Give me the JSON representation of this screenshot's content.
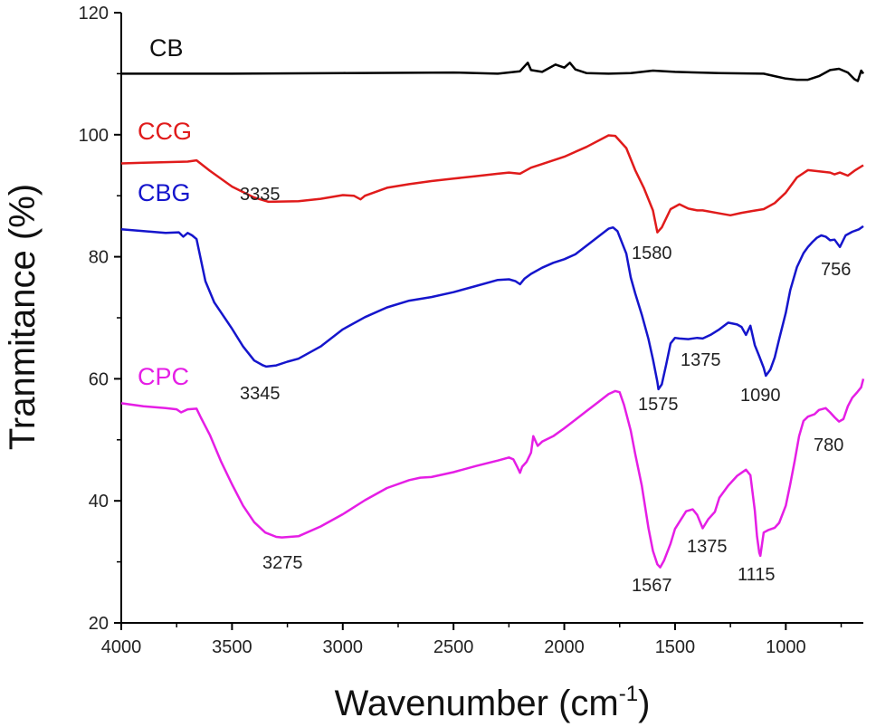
{
  "chart_data": {
    "type": "line",
    "title": "",
    "xlabel": "Wavenumber (cm",
    "xlabel_sup": "-1",
    "xlabel_close": ")",
    "ylabel": "Tranmitance (%)",
    "xlim": [
      4000,
      650
    ],
    "ylim": [
      20,
      120
    ],
    "x_reversed": true,
    "xticks": [
      4000,
      3500,
      3000,
      2500,
      2000,
      1500,
      1000
    ],
    "xtick_labels": [
      "4000",
      "3500",
      "3000",
      "2500",
      "2000",
      "1500",
      "1000"
    ],
    "yticks": [
      20,
      40,
      60,
      80,
      100,
      120
    ],
    "ytick_labels": [
      "20",
      "40",
      "60",
      "80",
      "100",
      "120"
    ],
    "grid": false,
    "series": [
      {
        "name": "CB",
        "color": "#000000",
        "x": [
          4000,
          3500,
          3000,
          2500,
          2300,
          2200,
          2165,
          2150,
          2100,
          2040,
          2000,
          1975,
          1950,
          1900,
          1800,
          1700,
          1600,
          1500,
          1300,
          1100,
          1050,
          1000,
          950,
          900,
          850,
          800,
          760,
          720,
          690,
          675,
          660,
          650
        ],
        "y": [
          110,
          110,
          110.1,
          110.2,
          110,
          110.4,
          111.8,
          110.6,
          110.3,
          111.5,
          111,
          111.8,
          110.7,
          110.1,
          110,
          110.1,
          110.5,
          110.3,
          110.1,
          110,
          109.6,
          109.2,
          109,
          109,
          109.6,
          110.6,
          110.8,
          110.2,
          109.1,
          108.8,
          110.5,
          110
        ]
      },
      {
        "name": "CCG",
        "color": "#e01b1b",
        "x": [
          4000,
          3900,
          3800,
          3700,
          3660,
          3600,
          3500,
          3400,
          3335,
          3200,
          3100,
          3000,
          2950,
          2920,
          2900,
          2800,
          2700,
          2600,
          2500,
          2400,
          2300,
          2250,
          2200,
          2180,
          2150,
          2100,
          2000,
          1900,
          1800,
          1770,
          1720,
          1680,
          1640,
          1600,
          1580,
          1560,
          1520,
          1480,
          1440,
          1400,
          1375,
          1300,
          1250,
          1200,
          1150,
          1100,
          1050,
          1000,
          950,
          900,
          850,
          800,
          780,
          756,
          720,
          690,
          650
        ],
        "y": [
          95.3,
          95.4,
          95.5,
          95.6,
          95.8,
          94.1,
          91.5,
          89.7,
          89,
          89.1,
          89.5,
          90.1,
          90,
          89.4,
          90,
          91.3,
          91.9,
          92.4,
          92.8,
          93.2,
          93.6,
          93.8,
          93.6,
          94,
          94.6,
          95.2,
          96.4,
          98,
          99.9,
          99.8,
          97.8,
          94.2,
          91.2,
          87.6,
          84,
          84.8,
          87.8,
          88.6,
          87.9,
          87.6,
          87.6,
          87.1,
          86.8,
          87.2,
          87.5,
          87.8,
          88.8,
          90.5,
          93,
          94.2,
          94,
          93.8,
          93.5,
          93.8,
          93.3,
          94.1,
          95
        ]
      },
      {
        "name": "CBG",
        "color": "#1515cc",
        "x": [
          4000,
          3900,
          3800,
          3740,
          3720,
          3700,
          3680,
          3660,
          3620,
          3580,
          3500,
          3450,
          3400,
          3360,
          3345,
          3300,
          3250,
          3200,
          3100,
          3000,
          2900,
          2800,
          2700,
          2600,
          2500,
          2400,
          2300,
          2250,
          2220,
          2200,
          2180,
          2150,
          2100,
          2050,
          2000,
          1950,
          1900,
          1850,
          1800,
          1780,
          1760,
          1720,
          1700,
          1680,
          1650,
          1620,
          1600,
          1580,
          1575,
          1560,
          1540,
          1520,
          1500,
          1480,
          1440,
          1400,
          1375,
          1340,
          1300,
          1260,
          1220,
          1200,
          1180,
          1160,
          1140,
          1120,
          1100,
          1090,
          1070,
          1050,
          1030,
          1000,
          980,
          950,
          920,
          900,
          880,
          860,
          840,
          820,
          800,
          780,
          756,
          730,
          700,
          670,
          650
        ],
        "y": [
          84.5,
          84.2,
          83.9,
          84,
          83.3,
          83.9,
          83.5,
          82.9,
          76,
          72.5,
          68.2,
          65.3,
          63,
          62.2,
          62,
          62.2,
          62.8,
          63.3,
          65.3,
          68.1,
          70.1,
          71.7,
          72.8,
          73.4,
          74.2,
          75.2,
          76.2,
          76.3,
          76,
          75.5,
          76.4,
          77.2,
          78.2,
          79,
          79.6,
          80.4,
          81.8,
          83.2,
          84.6,
          84.8,
          84.2,
          80.5,
          76.6,
          74,
          70.5,
          66.5,
          63.2,
          59.5,
          58.3,
          59.1,
          62.3,
          65.8,
          66.7,
          66.6,
          66.5,
          66.7,
          66.6,
          67.2,
          68.1,
          69.2,
          68.9,
          68.5,
          67.2,
          68.7,
          65.5,
          63.7,
          61.8,
          60.5,
          61.5,
          63.5,
          66.5,
          70.8,
          74.5,
          78.3,
          80.6,
          81.6,
          82.4,
          83.1,
          83.5,
          83.3,
          82.7,
          82.8,
          81.6,
          83.5,
          84.1,
          84.5,
          85
        ]
      },
      {
        "name": "CPC",
        "color": "#e51ee5",
        "x": [
          4000,
          3900,
          3800,
          3750,
          3730,
          3700,
          3660,
          3640,
          3600,
          3550,
          3500,
          3450,
          3400,
          3350,
          3300,
          3275,
          3200,
          3100,
          3000,
          2900,
          2800,
          2700,
          2650,
          2600,
          2500,
          2400,
          2300,
          2250,
          2230,
          2210,
          2200,
          2190,
          2170,
          2150,
          2140,
          2120,
          2100,
          2050,
          2000,
          1950,
          1900,
          1850,
          1800,
          1770,
          1750,
          1730,
          1700,
          1680,
          1650,
          1620,
          1600,
          1580,
          1567,
          1550,
          1520,
          1500,
          1450,
          1420,
          1400,
          1375,
          1350,
          1320,
          1300,
          1260,
          1220,
          1200,
          1180,
          1160,
          1140,
          1130,
          1120,
          1115,
          1100,
          1080,
          1050,
          1030,
          1000,
          980,
          960,
          940,
          920,
          900,
          870,
          850,
          820,
          800,
          780,
          760,
          740,
          720,
          700,
          680,
          660,
          650
        ],
        "y": [
          56,
          55.5,
          55.2,
          55,
          54.5,
          55,
          55.1,
          53.6,
          50.8,
          46.5,
          42.7,
          39.2,
          36.5,
          34.8,
          34.1,
          34,
          34.2,
          35.8,
          37.8,
          40.1,
          42.1,
          43.4,
          43.8,
          43.9,
          44.7,
          45.7,
          46.6,
          47.1,
          46.8,
          45.4,
          44.6,
          45.6,
          46.4,
          47.9,
          50.6,
          49,
          49.7,
          50.6,
          51.9,
          53.3,
          54.7,
          56.1,
          57.5,
          58,
          57.8,
          55.7,
          51.5,
          47.7,
          42.5,
          35.5,
          31.8,
          29.6,
          29.1,
          30.2,
          33,
          35.4,
          38.3,
          38.6,
          37.7,
          35.5,
          37,
          38.2,
          40.5,
          42.5,
          44.1,
          44.6,
          45.1,
          44.2,
          38.4,
          34.2,
          31.5,
          31,
          34.8,
          35.2,
          35.6,
          36.4,
          39.2,
          42.7,
          46.5,
          50.6,
          53.1,
          53.8,
          54.2,
          54.9,
          55.2,
          54.5,
          53.7,
          53,
          53.4,
          55.5,
          56.9,
          57.7,
          58.6,
          60
        ]
      }
    ],
    "labels": {
      "series_labels": [
        "CB",
        "CCG",
        "CBG",
        "CPC"
      ],
      "peaks": [
        "3335",
        "1580",
        "756",
        "3345",
        "1575",
        "1375",
        "1090",
        "780",
        "3275",
        "1567",
        "1375",
        "1115"
      ]
    }
  }
}
